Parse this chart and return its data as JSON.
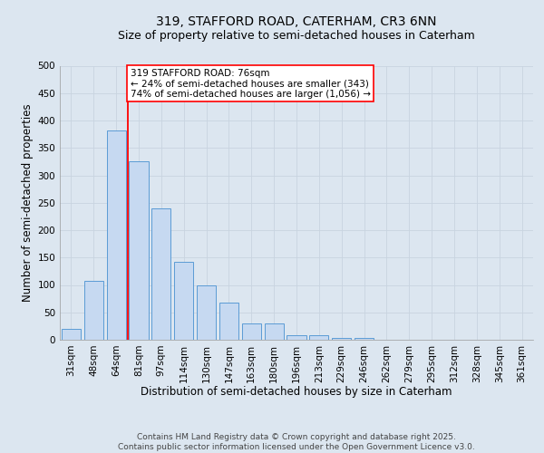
{
  "title_line1": "319, STAFFORD ROAD, CATERHAM, CR3 6NN",
  "title_line2": "Size of property relative to semi-detached houses in Caterham",
  "xlabel": "Distribution of semi-detached houses by size in Caterham",
  "ylabel": "Number of semi-detached properties",
  "categories": [
    "31sqm",
    "48sqm",
    "64sqm",
    "81sqm",
    "97sqm",
    "114sqm",
    "130sqm",
    "147sqm",
    "163sqm",
    "180sqm",
    "196sqm",
    "213sqm",
    "229sqm",
    "246sqm",
    "262sqm",
    "279sqm",
    "295sqm",
    "312sqm",
    "328sqm",
    "345sqm",
    "361sqm"
  ],
  "values": [
    20,
    107,
    381,
    325,
    240,
    142,
    100,
    68,
    30,
    30,
    8,
    8,
    4,
    4,
    0,
    0,
    0,
    0,
    0,
    0,
    0
  ],
  "bar_color": "#c6d9f1",
  "bar_edge_color": "#5b9bd5",
  "grid_color": "#c8d4e0",
  "background_color": "#dce6f0",
  "property_label": "319 STAFFORD ROAD: 76sqm",
  "annotation_line1": "← 24% of semi-detached houses are smaller (343)",
  "annotation_line2": "74% of semi-detached houses are larger (1,056) →",
  "vline_position": 2.5,
  "ylim": [
    0,
    500
  ],
  "yticks": [
    0,
    50,
    100,
    150,
    200,
    250,
    300,
    350,
    400,
    450,
    500
  ],
  "footer_line1": "Contains HM Land Registry data © Crown copyright and database right 2025.",
  "footer_line2": "Contains public sector information licensed under the Open Government Licence v3.0.",
  "title_fontsize": 10,
  "subtitle_fontsize": 9,
  "axis_label_fontsize": 8.5,
  "tick_fontsize": 7.5,
  "annotation_fontsize": 7.5,
  "footer_fontsize": 6.5
}
